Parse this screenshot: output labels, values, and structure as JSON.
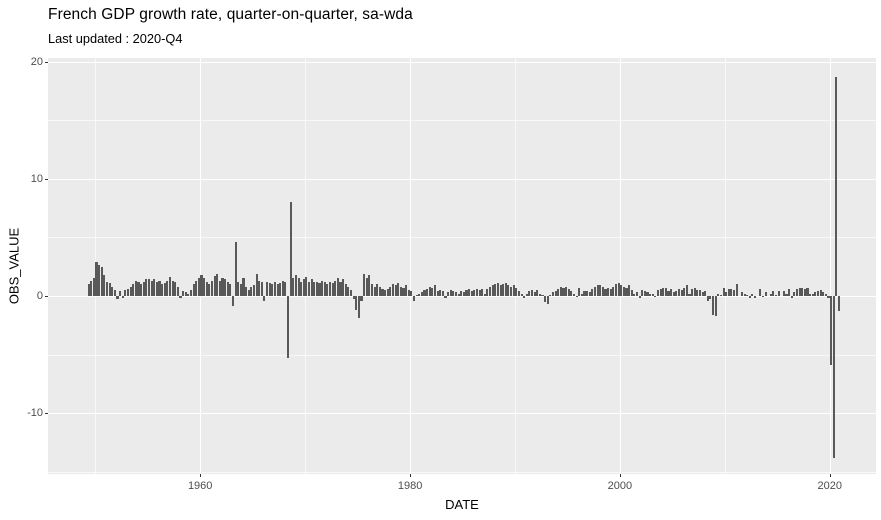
{
  "window": {
    "background": "#FFFFFF"
  },
  "chart_data": {
    "type": "bar",
    "title": "French GDP growth rate, quarter-on-quarter, sa-wda",
    "subtitle": "Last updated : 2020-Q4",
    "xlabel": "DATE",
    "ylabel": "OBS_VALUE",
    "legend": "none",
    "grid": true,
    "panel_bg": "#EBEBEB",
    "grid_major_color": "#FFFFFF",
    "bar_color": "#595959",
    "tick_label_color": "#4D4D4D",
    "xlim": [
      1945.5,
      2024.4
    ],
    "ylim": [
      -15.2,
      20.3
    ],
    "x_ticks": [
      1960,
      1980,
      2000,
      2020
    ],
    "x_minor_ticks": [
      1950,
      1970,
      1990,
      2010
    ],
    "y_ticks": [
      20,
      10,
      0,
      -10
    ],
    "y_minor_ticks": [
      15,
      5,
      -5,
      -15
    ],
    "series": [
      {
        "name": "OBS_VALUE",
        "start_year": 1949,
        "start_quarter": 2,
        "frequency_per_year": 4,
        "values": [
          1.0,
          1.3,
          1.5,
          2.9,
          2.6,
          2.5,
          1.8,
          1.2,
          1.1,
          0.8,
          0.5,
          -0.3,
          0.4,
          -0.2,
          0.5,
          0.6,
          0.8,
          1.0,
          1.3,
          1.2,
          1.0,
          1.2,
          1.4,
          1.4,
          1.3,
          1.4,
          1.2,
          1.3,
          1.0,
          1.1,
          1.3,
          1.6,
          1.3,
          1.2,
          0.8,
          -0.2,
          0.4,
          0.3,
          0.2,
          0.5,
          1.0,
          1.3,
          1.5,
          1.8,
          1.5,
          1.2,
          1.0,
          1.3,
          1.7,
          1.9,
          1.3,
          1.5,
          1.4,
          1.2,
          1.0,
          -0.9,
          4.6,
          1.2,
          1.0,
          1.5,
          0.8,
          0.5,
          0.8,
          0.9,
          1.9,
          1.3,
          1.2,
          -0.4,
          1.2,
          1.1,
          1.0,
          1.2,
          1.0,
          1.1,
          1.3,
          1.2,
          -5.3,
          8.0,
          1.5,
          1.8,
          1.5,
          1.2,
          1.4,
          1.6,
          1.2,
          1.4,
          1.2,
          1.2,
          1.1,
          1.3,
          1.2,
          1.0,
          1.2,
          1.1,
          1.3,
          1.5,
          1.2,
          1.4,
          1.0,
          0.8,
          0.5,
          -0.3,
          -1.2,
          -1.9,
          -0.4,
          1.9,
          1.5,
          1.8,
          1.0,
          0.8,
          1.0,
          0.8,
          0.6,
          0.5,
          0.6,
          0.8,
          1.0,
          0.9,
          1.1,
          0.8,
          0.7,
          0.9,
          0.5,
          0.4,
          -0.4,
          0.1,
          0.2,
          0.3,
          0.5,
          0.6,
          0.8,
          0.7,
          0.9,
          0.4,
          0.5,
          0.4,
          -0.2,
          0.3,
          0.5,
          0.4,
          0.3,
          0.2,
          0.4,
          0.3,
          0.5,
          0.6,
          0.4,
          0.5,
          0.6,
          0.5,
          0.6,
          0.2,
          0.6,
          0.8,
          0.9,
          1.0,
          1.1,
          0.9,
          1.0,
          1.1,
          0.9,
          0.8,
          0.9,
          0.7,
          0.4,
          0.2,
          -0.2,
          0.2,
          0.4,
          0.5,
          0.3,
          0.5,
          0.2,
          0.1,
          -0.5,
          -0.7,
          0.1,
          0.3,
          0.4,
          0.6,
          0.8,
          0.7,
          0.8,
          0.6,
          0.4,
          0.2,
          -0.1,
          0.7,
          0.2,
          0.4,
          0.4,
          0.3,
          0.6,
          0.8,
          0.9,
          0.9,
          0.8,
          0.6,
          0.7,
          0.6,
          0.8,
          1.0,
          1.1,
          0.9,
          0.8,
          0.7,
          0.9,
          0.5,
          0.2,
          0.3,
          -0.2,
          0.5,
          0.4,
          0.3,
          0.2,
          0.2,
          -0.1,
          0.5,
          0.6,
          0.7,
          0.7,
          0.4,
          0.6,
          0.3,
          0.4,
          0.6,
          0.5,
          0.7,
          0.9,
          0.2,
          0.6,
          0.7,
          0.5,
          0.5,
          0.3,
          0.4,
          -0.4,
          -0.3,
          -1.6,
          -1.7,
          0.2,
          0.1,
          0.7,
          0.3,
          0.6,
          0.6,
          0.5,
          1.0,
          0.0,
          0.3,
          0.2,
          0.1,
          -0.2,
          0.2,
          -0.2,
          0.0,
          0.6,
          -0.1,
          0.3,
          0.0,
          0.2,
          0.4,
          0.1,
          0.4,
          0.0,
          0.4,
          0.2,
          0.6,
          -0.2,
          0.3,
          0.6,
          0.7,
          0.7,
          0.6,
          0.7,
          0.2,
          0.2,
          0.3,
          0.4,
          0.5,
          0.3,
          0.2,
          -0.2,
          -5.9,
          -13.8,
          18.7,
          -1.3
        ]
      }
    ]
  }
}
